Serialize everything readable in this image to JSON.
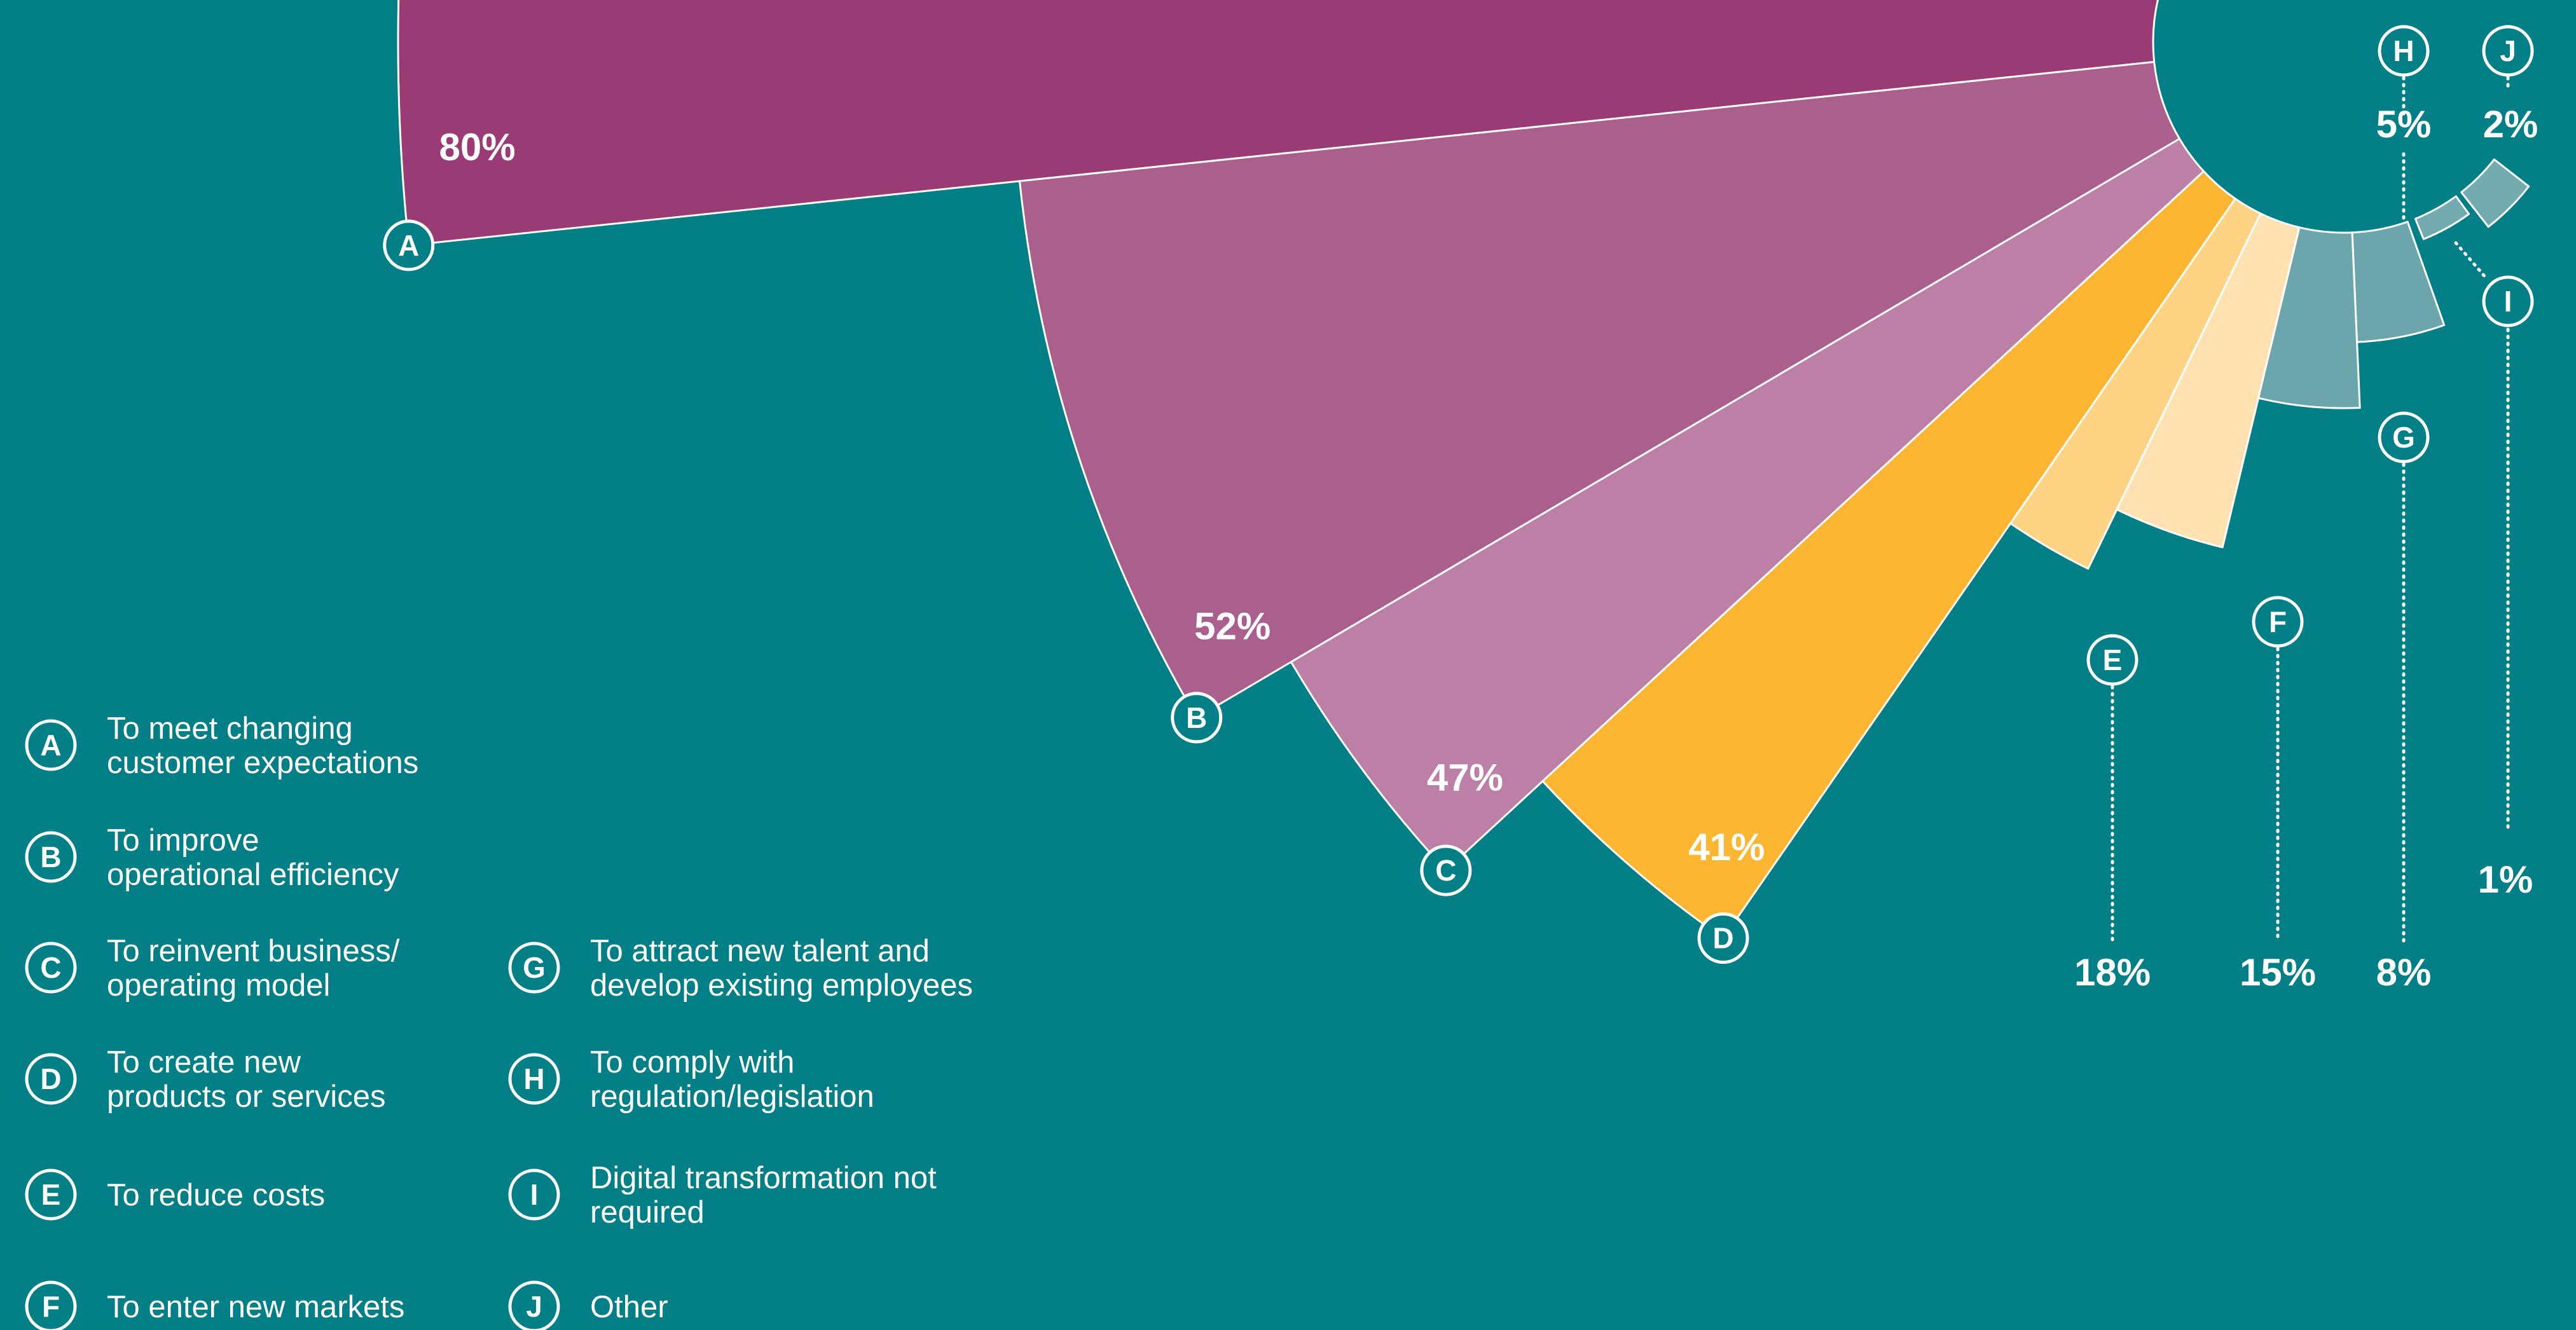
{
  "colors": {
    "background": "#017F86",
    "A": "#9B3B76",
    "B": "#AA5F8C",
    "C": "#BC7FA5",
    "D": "#FDB632",
    "E": "#FFD384",
    "F": "#FFE2B0",
    "G": "#6BA6AD",
    "H": "#6BA6AD",
    "I": "#73ABB1",
    "J": "#73ABB1",
    "text": "#FFFFFF"
  },
  "chart_data": {
    "type": "pie",
    "variant": "radial-bar",
    "unit": "%",
    "series": [
      {
        "key": "A",
        "label": "To meet changing customer expectations",
        "label_lines": [
          "To meet changing",
          "customer expectations"
        ],
        "value": 80,
        "display": "80%"
      },
      {
        "key": "B",
        "label": "To improve operational efficiency",
        "label_lines": [
          "To improve",
          "operational efficiency"
        ],
        "value": 52,
        "display": "52%"
      },
      {
        "key": "C",
        "label": "To reinvent business/ operating model",
        "label_lines": [
          "To reinvent business/",
          "operating model"
        ],
        "value": 47,
        "display": "47%"
      },
      {
        "key": "D",
        "label": "To create new products or services",
        "label_lines": [
          "To create new",
          "products or services"
        ],
        "value": 41,
        "display": "41%"
      },
      {
        "key": "E",
        "label": "To reduce costs",
        "label_lines": [
          "To reduce costs"
        ],
        "value": 18,
        "display": "18%"
      },
      {
        "key": "F",
        "label": "To enter new markets",
        "label_lines": [
          "To enter new markets"
        ],
        "value": 15,
        "display": "15%"
      },
      {
        "key": "G",
        "label": "To attract new talent and develop existing employees",
        "label_lines": [
          "To attract new talent and",
          "develop existing employees"
        ],
        "value": 8,
        "display": "8%"
      },
      {
        "key": "H",
        "label": "To comply with regulation/legislation",
        "label_lines": [
          "To comply with",
          "regulation/legislation"
        ],
        "value": 5,
        "display": "5%"
      },
      {
        "key": "I",
        "label": "Digital transformation not required",
        "label_lines": [
          "Digital transformation not",
          "required"
        ],
        "value": 1,
        "display": "1%"
      },
      {
        "key": "J",
        "label": "Other",
        "label_lines": [
          "Other"
        ],
        "value": 2,
        "display": "2%"
      }
    ],
    "legend_position": "bottom-left"
  }
}
